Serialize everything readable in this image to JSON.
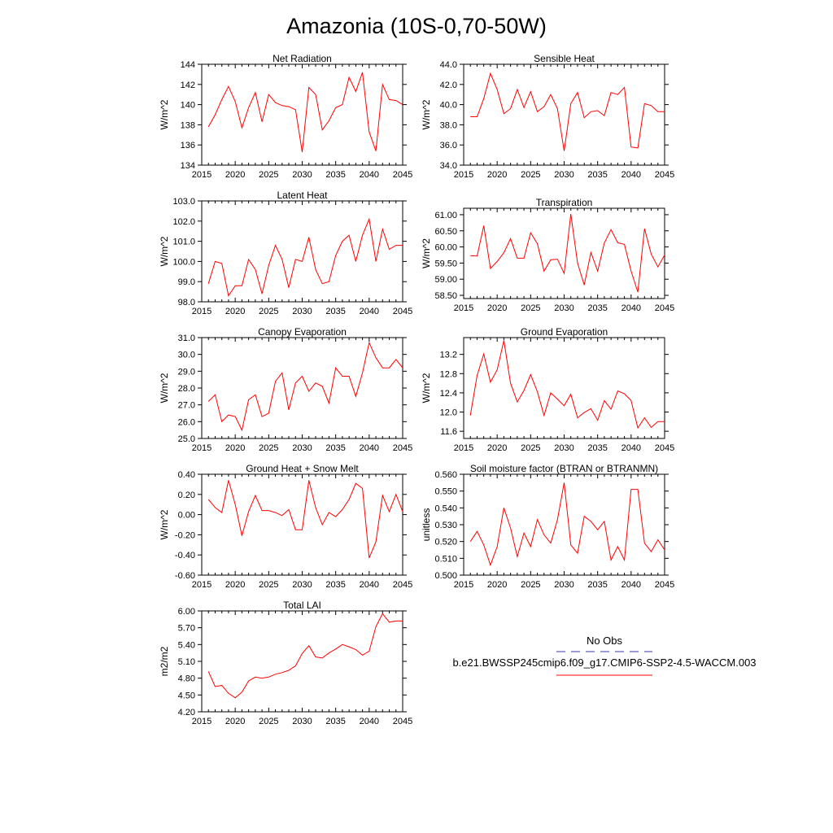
{
  "page_title": "Amazonia (10S-0,70-50W)",
  "colors": {
    "series": "#ff0000",
    "obs": "#3a3aa8",
    "axis": "#000000"
  },
  "legend": {
    "obs_label": "No Obs",
    "model_label": "b.e21.BWSSP245cmip6.f09_g17.CMIP6-SSP2-4.5-WACCM.003"
  },
  "chart_data": [
    {
      "type": "line",
      "title": "Net Radiation",
      "xlabel": "",
      "ylabel": "W/m^2",
      "xlim": [
        2015,
        2045
      ],
      "xticks": [
        2015,
        2020,
        2025,
        2030,
        2035,
        2040,
        2045
      ],
      "ylim": [
        134,
        144
      ],
      "yticks": [
        {
          "v": 134,
          "label": "134"
        },
        {
          "v": 136,
          "label": "136"
        },
        {
          "v": 138,
          "label": "138"
        },
        {
          "v": 140,
          "label": "140"
        },
        {
          "v": 142,
          "label": "142"
        },
        {
          "v": 144,
          "label": "144"
        }
      ],
      "x": [
        2016,
        2017,
        2018,
        2019,
        2020,
        2021,
        2022,
        2023,
        2024,
        2025,
        2026,
        2027,
        2028,
        2029,
        2030,
        2031,
        2032,
        2033,
        2034,
        2035,
        2036,
        2037,
        2038,
        2039,
        2040,
        2041,
        2042,
        2043,
        2044,
        2045
      ],
      "values": [
        137.8,
        139.0,
        140.5,
        141.8,
        140.3,
        137.7,
        139.7,
        141.2,
        138.3,
        141.0,
        140.2,
        139.9,
        139.8,
        139.5,
        135.3,
        141.7,
        141.0,
        137.5,
        138.4,
        139.7,
        140.0,
        142.7,
        141.3,
        143.2,
        137.3,
        135.4,
        142.0,
        140.5,
        140.4,
        140.0
      ]
    },
    {
      "type": "line",
      "title": "Sensible Heat",
      "xlabel": "",
      "ylabel": "W/m^2",
      "xlim": [
        2015,
        2045
      ],
      "xticks": [
        2015,
        2020,
        2025,
        2030,
        2035,
        2040,
        2045
      ],
      "ylim": [
        34,
        44
      ],
      "yticks": [
        {
          "v": 34,
          "label": "34.0"
        },
        {
          "v": 36,
          "label": "36.0"
        },
        {
          "v": 38,
          "label": "38.0"
        },
        {
          "v": 40,
          "label": "40.0"
        },
        {
          "v": 42,
          "label": "42.0"
        },
        {
          "v": 44,
          "label": "44.0"
        }
      ],
      "x": [
        2016,
        2017,
        2018,
        2019,
        2020,
        2021,
        2022,
        2023,
        2024,
        2025,
        2026,
        2027,
        2028,
        2029,
        2030,
        2031,
        2032,
        2033,
        2034,
        2035,
        2036,
        2037,
        2038,
        2039,
        2040,
        2041,
        2042,
        2043,
        2044,
        2045
      ],
      "values": [
        38.8,
        38.8,
        40.6,
        43.1,
        41.5,
        39.1,
        39.6,
        41.5,
        39.7,
        41.3,
        39.3,
        39.8,
        41.0,
        39.6,
        35.4,
        40.1,
        41.2,
        38.7,
        39.3,
        39.4,
        38.9,
        41.2,
        41.0,
        41.7,
        35.8,
        35.7,
        40.1,
        39.9,
        39.3,
        39.3
      ]
    },
    {
      "type": "line",
      "title": "Latent Heat",
      "xlabel": "",
      "ylabel": "W/m^2",
      "xlim": [
        2015,
        2045
      ],
      "xticks": [
        2015,
        2020,
        2025,
        2030,
        2035,
        2040,
        2045
      ],
      "ylim": [
        98,
        103
      ],
      "yticks": [
        {
          "v": 98,
          "label": "98.0"
        },
        {
          "v": 99,
          "label": "99.0"
        },
        {
          "v": 100,
          "label": "100.0"
        },
        {
          "v": 101,
          "label": "101.0"
        },
        {
          "v": 102,
          "label": "102.0"
        },
        {
          "v": 103,
          "label": "103.0"
        }
      ],
      "x": [
        2016,
        2017,
        2018,
        2019,
        2020,
        2021,
        2022,
        2023,
        2024,
        2025,
        2026,
        2027,
        2028,
        2029,
        2030,
        2031,
        2032,
        2033,
        2034,
        2035,
        2036,
        2037,
        2038,
        2039,
        2040,
        2041,
        2042,
        2043,
        2044,
        2045
      ],
      "values": [
        98.9,
        100.0,
        99.9,
        98.3,
        98.8,
        98.8,
        100.1,
        99.6,
        98.4,
        99.8,
        100.8,
        100.1,
        98.7,
        100.1,
        100.0,
        101.2,
        99.6,
        98.9,
        99.0,
        100.3,
        101.0,
        101.3,
        100.0,
        101.3,
        102.1,
        100.0,
        101.6,
        100.6,
        100.8,
        100.8
      ]
    },
    {
      "type": "line",
      "title": "Transpiration",
      "xlabel": "",
      "ylabel": "W/m^2",
      "xlim": [
        2015,
        2045
      ],
      "xticks": [
        2015,
        2020,
        2025,
        2030,
        2035,
        2040,
        2045
      ],
      "ylim": [
        58.4,
        61.2
      ],
      "yticks": [
        {
          "v": 58.5,
          "label": "58.50"
        },
        {
          "v": 59.0,
          "label": "59.00"
        },
        {
          "v": 59.5,
          "label": "59.50"
        },
        {
          "v": 60.0,
          "label": "60.00"
        },
        {
          "v": 60.5,
          "label": "60.50"
        },
        {
          "v": 61.0,
          "label": "61.00"
        }
      ],
      "x": [
        2016,
        2017,
        2018,
        2019,
        2020,
        2021,
        2022,
        2023,
        2024,
        2025,
        2026,
        2027,
        2028,
        2029,
        2030,
        2031,
        2032,
        2033,
        2034,
        2035,
        2036,
        2037,
        2038,
        2039,
        2040,
        2041,
        2042,
        2043,
        2044,
        2045
      ],
      "values": [
        59.73,
        59.72,
        60.66,
        59.33,
        59.55,
        59.82,
        60.26,
        59.65,
        59.65,
        60.44,
        60.1,
        59.25,
        59.6,
        59.62,
        59.18,
        61.02,
        59.5,
        58.82,
        59.83,
        59.25,
        60.12,
        60.54,
        60.13,
        60.08,
        59.25,
        58.6,
        60.57,
        59.78,
        59.38,
        59.75
      ]
    },
    {
      "type": "line",
      "title": "Canopy Evaporation",
      "xlabel": "",
      "ylabel": "W/m^2",
      "xlim": [
        2015,
        2045
      ],
      "xticks": [
        2015,
        2020,
        2025,
        2030,
        2035,
        2040,
        2045
      ],
      "ylim": [
        25,
        31
      ],
      "yticks": [
        {
          "v": 25,
          "label": "25.0"
        },
        {
          "v": 26,
          "label": "26.0"
        },
        {
          "v": 27,
          "label": "27.0"
        },
        {
          "v": 28,
          "label": "28.0"
        },
        {
          "v": 29,
          "label": "29.0"
        },
        {
          "v": 30,
          "label": "30.0"
        },
        {
          "v": 31,
          "label": "31.0"
        }
      ],
      "x": [
        2016,
        2017,
        2018,
        2019,
        2020,
        2021,
        2022,
        2023,
        2024,
        2025,
        2026,
        2027,
        2028,
        2029,
        2030,
        2031,
        2032,
        2033,
        2034,
        2035,
        2036,
        2037,
        2038,
        2039,
        2040,
        2041,
        2042,
        2043,
        2044,
        2045
      ],
      "values": [
        27.2,
        27.6,
        26.0,
        26.4,
        26.3,
        25.5,
        27.3,
        27.6,
        26.3,
        26.5,
        28.4,
        28.9,
        26.7,
        28.3,
        28.7,
        27.8,
        28.3,
        28.1,
        27.1,
        29.2,
        28.7,
        28.7,
        27.5,
        28.9,
        30.7,
        29.8,
        29.2,
        29.2,
        29.7,
        29.2
      ]
    },
    {
      "type": "line",
      "title": "Ground Evaporation",
      "xlabel": "",
      "ylabel": "W/m^2",
      "xlim": [
        2015,
        2045
      ],
      "xticks": [
        2015,
        2020,
        2025,
        2030,
        2035,
        2040,
        2045
      ],
      "ylim": [
        11.45,
        13.55
      ],
      "yticks": [
        {
          "v": 11.6,
          "label": "11.6"
        },
        {
          "v": 12.0,
          "label": "12.0"
        },
        {
          "v": 12.4,
          "label": "12.4"
        },
        {
          "v": 12.8,
          "label": "12.8"
        },
        {
          "v": 13.2,
          "label": "13.2"
        }
      ],
      "x": [
        2016,
        2017,
        2018,
        2019,
        2020,
        2021,
        2022,
        2023,
        2024,
        2025,
        2026,
        2027,
        2028,
        2029,
        2030,
        2031,
        2032,
        2033,
        2034,
        2035,
        2036,
        2037,
        2038,
        2039,
        2040,
        2041,
        2042,
        2043,
        2044,
        2045
      ],
      "values": [
        11.93,
        12.76,
        13.21,
        12.62,
        12.88,
        13.49,
        12.6,
        12.21,
        12.45,
        12.78,
        12.42,
        11.93,
        12.4,
        12.27,
        12.13,
        12.37,
        11.88,
        11.99,
        12.07,
        11.83,
        12.24,
        12.06,
        12.44,
        12.38,
        12.24,
        11.67,
        11.88,
        11.68,
        11.8,
        11.8
      ]
    },
    {
      "type": "line",
      "title": "Ground Heat + Snow Melt",
      "xlabel": "",
      "ylabel": "W/m^2",
      "xlim": [
        2015,
        2045
      ],
      "xticks": [
        2015,
        2020,
        2025,
        2030,
        2035,
        2040,
        2045
      ],
      "ylim": [
        -0.6,
        0.4
      ],
      "yticks": [
        {
          "v": -0.6,
          "label": "-0.60"
        },
        {
          "v": -0.4,
          "label": "-0.40"
        },
        {
          "v": -0.2,
          "label": "-0.20"
        },
        {
          "v": 0.0,
          "label": "0.00"
        },
        {
          "v": 0.2,
          "label": "0.20"
        },
        {
          "v": 0.4,
          "label": "0.40"
        }
      ],
      "x": [
        2016,
        2017,
        2018,
        2019,
        2020,
        2021,
        2022,
        2023,
        2024,
        2025,
        2026,
        2027,
        2028,
        2029,
        2030,
        2031,
        2032,
        2033,
        2034,
        2035,
        2036,
        2037,
        2038,
        2039,
        2040,
        2041,
        2042,
        2043,
        2044,
        2045
      ],
      "values": [
        0.15,
        0.07,
        0.02,
        0.34,
        0.1,
        -0.21,
        0.03,
        0.19,
        0.04,
        0.04,
        0.02,
        -0.01,
        0.05,
        -0.15,
        -0.15,
        0.34,
        0.07,
        -0.1,
        0.02,
        -0.02,
        0.05,
        0.15,
        0.31,
        0.26,
        -0.43,
        -0.27,
        0.19,
        0.03,
        0.2,
        0.03
      ]
    },
    {
      "type": "line",
      "title": "Soil moisture factor (BTRAN or BTRANMN)",
      "xlabel": "",
      "ylabel": "unitless",
      "xlim": [
        2015,
        2045
      ],
      "xticks": [
        2015,
        2020,
        2025,
        2030,
        2035,
        2040,
        2045
      ],
      "ylim": [
        0.5,
        0.56
      ],
      "yticks": [
        {
          "v": 0.5,
          "label": "0.500"
        },
        {
          "v": 0.51,
          "label": "0.510"
        },
        {
          "v": 0.52,
          "label": "0.520"
        },
        {
          "v": 0.53,
          "label": "0.530"
        },
        {
          "v": 0.54,
          "label": "0.540"
        },
        {
          "v": 0.55,
          "label": "0.550"
        },
        {
          "v": 0.56,
          "label": "0.560"
        }
      ],
      "x": [
        2016,
        2017,
        2018,
        2019,
        2020,
        2021,
        2022,
        2023,
        2024,
        2025,
        2026,
        2027,
        2028,
        2029,
        2030,
        2031,
        2032,
        2033,
        2034,
        2035,
        2036,
        2037,
        2038,
        2039,
        2040,
        2041,
        2042,
        2043,
        2044,
        2045
      ],
      "values": [
        0.52,
        0.526,
        0.518,
        0.506,
        0.517,
        0.54,
        0.528,
        0.511,
        0.525,
        0.517,
        0.533,
        0.524,
        0.519,
        0.533,
        0.555,
        0.518,
        0.513,
        0.535,
        0.532,
        0.527,
        0.532,
        0.509,
        0.517,
        0.509,
        0.551,
        0.551,
        0.519,
        0.514,
        0.521,
        0.515
      ]
    },
    {
      "type": "line",
      "title": "Total LAI",
      "xlabel": "",
      "ylabel": "m2/m2",
      "xlim": [
        2015,
        2045
      ],
      "xticks": [
        2015,
        2020,
        2025,
        2030,
        2035,
        2040,
        2045
      ],
      "ylim": [
        4.2,
        6.0
      ],
      "yticks": [
        {
          "v": 4.2,
          "label": "4.20"
        },
        {
          "v": 4.5,
          "label": "4.50"
        },
        {
          "v": 4.8,
          "label": "4.80"
        },
        {
          "v": 5.1,
          "label": "5.10"
        },
        {
          "v": 5.4,
          "label": "5.40"
        },
        {
          "v": 5.7,
          "label": "5.70"
        },
        {
          "v": 6.0,
          "label": "6.00"
        }
      ],
      "x": [
        2016,
        2017,
        2018,
        2019,
        2020,
        2021,
        2022,
        2023,
        2024,
        2025,
        2026,
        2027,
        2028,
        2029,
        2030,
        2031,
        2032,
        2033,
        2034,
        2035,
        2036,
        2037,
        2038,
        2039,
        2040,
        2041,
        2042,
        2043,
        2044,
        2045
      ],
      "values": [
        4.92,
        4.65,
        4.67,
        4.53,
        4.45,
        4.55,
        4.75,
        4.82,
        4.8,
        4.82,
        4.87,
        4.9,
        4.94,
        5.02,
        5.24,
        5.38,
        5.18,
        5.16,
        5.25,
        5.32,
        5.4,
        5.36,
        5.31,
        5.21,
        5.28,
        5.72,
        5.95,
        5.8,
        5.82,
        5.82
      ]
    }
  ]
}
